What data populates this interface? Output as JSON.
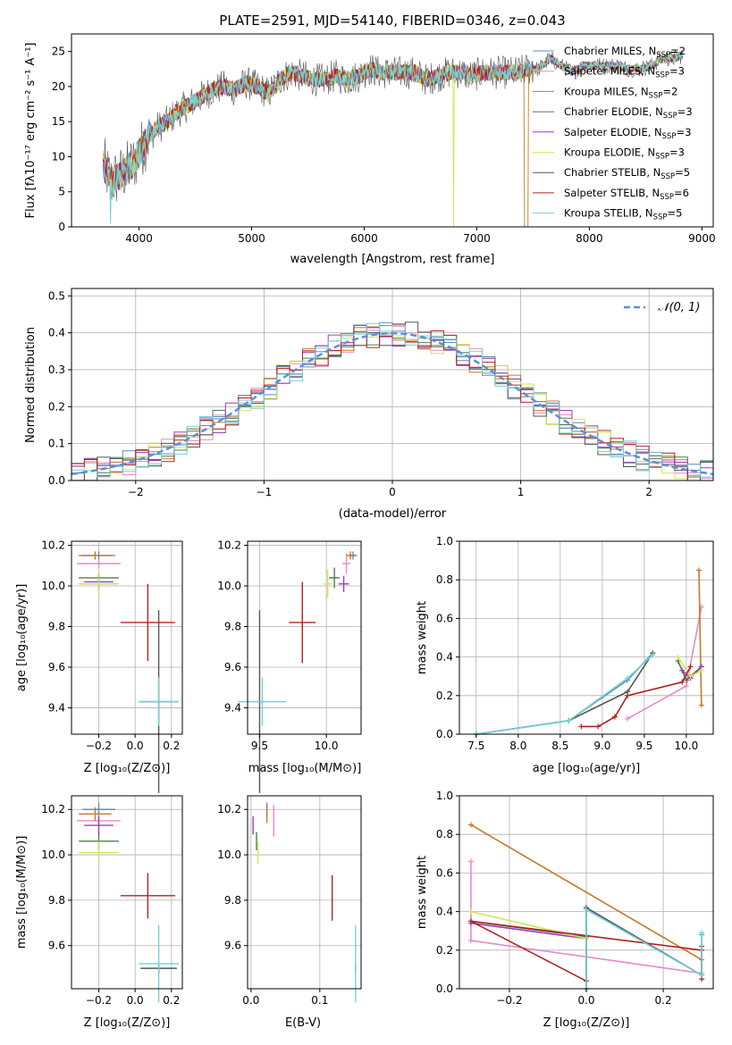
{
  "chart_data": [
    {
      "id": "spectrum",
      "type": "line",
      "title": "PLATE=2591, MJD=54140, FIBERID=0346, z=0.043",
      "xlabel": "wavelength [Angstrom, rest frame]",
      "ylabel": "Flux [fλ10⁻¹⁷ erg cm⁻² s⁻¹ A⁻¹]",
      "xlim": [
        3400,
        9100
      ],
      "ylim": [
        0,
        27.5
      ],
      "xticks": [
        4000,
        5000,
        6000,
        7000,
        8000,
        9000
      ],
      "yticks": [
        0,
        5,
        10,
        15,
        20,
        25
      ],
      "grid": false,
      "legend_position": "right",
      "continuum_x": [
        3680,
        3750,
        3850,
        3950,
        4050,
        4150,
        4250,
        4350,
        4450,
        4550,
        4650,
        4750,
        4850,
        4950,
        5050,
        5150,
        5250,
        5350,
        5450,
        5550,
        5650,
        5750,
        5850,
        5950,
        6050,
        6150,
        6250,
        6350,
        6450,
        6550,
        6650,
        6750,
        6850,
        6950,
        7050,
        7150,
        7250,
        7350,
        7450,
        7550,
        7650,
        7750,
        7850,
        7950,
        8050,
        8150,
        8250,
        8350,
        8450,
        8550,
        8650,
        8750,
        8830
      ],
      "continuum_y": [
        9,
        6.5,
        7.5,
        9,
        12,
        14,
        15,
        16.5,
        17.5,
        18.5,
        19.5,
        20,
        19.5,
        20.5,
        20,
        19,
        21,
        22,
        21.5,
        21,
        21,
        21.5,
        21,
        21.5,
        22.5,
        22,
        22,
        22,
        22,
        21,
        21.5,
        22,
        22,
        21.5,
        22,
        22,
        22,
        22,
        22.5,
        22.5,
        24,
        23,
        22,
        23,
        23,
        23,
        23,
        22.5,
        22.5,
        23,
        24,
        24,
        24.5
      ],
      "series": [
        {
          "name": "Chabrier MILES, N_SSP=2",
          "color": "#5b8fbf"
        },
        {
          "name": "Salpeter MILES, N_SSP=3",
          "color": "#e58ac8"
        },
        {
          "name": "Kroupa MILES, N_SSP=2",
          "color": "#c77828"
        },
        {
          "name": "Chabrier ELODIE, N_SSP=3",
          "color": "#4a7f4a"
        },
        {
          "name": "Salpeter ELODIE, N_SSP=3",
          "color": "#9a3fbf"
        },
        {
          "name": "Kroupa ELODIE, N_SSP=3",
          "color": "#d4e35a"
        },
        {
          "name": "Chabrier STELIB, N_SSP=5",
          "color": "#555555"
        },
        {
          "name": "Salpeter STELIB, N_SSP=6",
          "color": "#b22222"
        },
        {
          "name": "Kroupa STELIB, N_SSP=5",
          "color": "#6fd3d8"
        }
      ],
      "legend_labels": [
        {
          "text": "Chabrier MILES, N",
          "sub": "SSP",
          "tail": "=2"
        },
        {
          "text": "Salpeter MILES, N",
          "sub": "SSP",
          "tail": "=3"
        },
        {
          "text": "Kroupa MILES, N",
          "sub": "SSP",
          "tail": "=2"
        },
        {
          "text": "Chabrier ELODIE, N",
          "sub": "SSP",
          "tail": "=3"
        },
        {
          "text": "Salpeter ELODIE, N",
          "sub": "SSP",
          "tail": "=3"
        },
        {
          "text": "Kroupa ELODIE, N",
          "sub": "SSP",
          "tail": "=3"
        },
        {
          "text": "Chabrier STELIB, N",
          "sub": "SSP",
          "tail": "=5"
        },
        {
          "text": "Salpeter STELIB, N",
          "sub": "SSP",
          "tail": "=6"
        },
        {
          "text": "Kroupa STELIB, N",
          "sub": "SSP",
          "tail": "=5"
        }
      ]
    },
    {
      "id": "residuals",
      "type": "line",
      "xlabel": "(data-model)/error",
      "ylabel": "Normed distribution",
      "xlim": [
        -2.5,
        2.5
      ],
      "ylim": [
        0,
        0.52
      ],
      "xticks": [
        -2,
        -1,
        0,
        1,
        2
      ],
      "yticks": [
        0.0,
        0.1,
        0.2,
        0.3,
        0.4,
        0.5
      ],
      "grid": true,
      "legend_position": "top-right",
      "gaussian_label": "𝒩(0, 1)",
      "bin_width": 0.1,
      "gaussian": {
        "mean": 0,
        "sigma": 1,
        "color": "#5b8fd9"
      }
    },
    {
      "id": "age-vs-z",
      "type": "scatter",
      "xlabel": "Z [log₁₀(Z/Z⊙)]",
      "ylabel": "age  [log₁₀(age/yr)]",
      "xlim": [
        -0.35,
        0.26
      ],
      "ylim": [
        9.27,
        10.22
      ],
      "xticks": [
        -0.2,
        0.0,
        0.2
      ],
      "yticks": [
        9.4,
        9.6,
        9.8,
        10.0,
        10.2
      ],
      "grid": true,
      "points": [
        {
          "x": -0.2,
          "y": 10.15,
          "xerr": 0.09,
          "yerr": 0.02,
          "color": "#5b8fbf"
        },
        {
          "x": -0.2,
          "y": 10.11,
          "xerr": 0.12,
          "yerr": 0.02,
          "color": "#e58ac8"
        },
        {
          "x": -0.22,
          "y": 10.15,
          "xerr": 0.09,
          "yerr": 0.02,
          "color": "#c77828"
        },
        {
          "x": -0.2,
          "y": 10.04,
          "xerr": 0.11,
          "yerr": 0.02,
          "color": "#4a7f4a"
        },
        {
          "x": -0.2,
          "y": 10.02,
          "xerr": 0.08,
          "yerr": 0.04,
          "color": "#9a3fbf"
        },
        {
          "x": -0.2,
          "y": 10.01,
          "xerr": 0.11,
          "yerr": 0.07,
          "color": "#d4e35a"
        },
        {
          "x": 0.13,
          "y": 9.43,
          "xerr": 0.1,
          "yerr": 0.45,
          "color": "#555555"
        },
        {
          "x": 0.07,
          "y": 9.82,
          "xerr": 0.15,
          "yerr": 0.19,
          "color": "#b22222"
        },
        {
          "x": 0.13,
          "y": 9.43,
          "xerr": 0.11,
          "yerr": 0.12,
          "color": "#6fd3d8"
        }
      ]
    },
    {
      "id": "age-vs-mass",
      "type": "scatter",
      "xlabel": "mass [log₁₀(M/M⊙)]",
      "ylabel": "",
      "xlim": [
        9.41,
        10.26
      ],
      "ylim": [
        9.27,
        10.22
      ],
      "xticks": [
        9.5,
        10.0
      ],
      "yticks": [
        9.4,
        9.6,
        9.8,
        10.0,
        10.2
      ],
      "grid": true,
      "points": [
        {
          "x": 10.2,
          "y": 10.15,
          "xerr": 0.03,
          "yerr": 0.02,
          "color": "#5b8fbf"
        },
        {
          "x": 10.15,
          "y": 10.11,
          "xerr": 0.03,
          "yerr": 0.05,
          "color": "#e58ac8"
        },
        {
          "x": 10.18,
          "y": 10.15,
          "xerr": 0.03,
          "yerr": 0.02,
          "color": "#c77828"
        },
        {
          "x": 10.06,
          "y": 10.04,
          "xerr": 0.04,
          "yerr": 0.05,
          "color": "#4a7f4a"
        },
        {
          "x": 10.13,
          "y": 10.01,
          "xerr": 0.04,
          "yerr": 0.04,
          "color": "#9a3fbf"
        },
        {
          "x": 10.01,
          "y": 10.01,
          "xerr": 0.03,
          "yerr": 0.07,
          "color": "#d4e35a"
        },
        {
          "x": 9.5,
          "y": 9.43,
          "xerr": 0.02,
          "yerr": 0.45,
          "color": "#555555"
        },
        {
          "x": 9.82,
          "y": 9.82,
          "xerr": 0.1,
          "yerr": 0.2,
          "color": "#b22222"
        },
        {
          "x": 9.52,
          "y": 9.43,
          "xerr": 0.18,
          "yerr": 0.12,
          "color": "#6fd3d8"
        }
      ]
    },
    {
      "id": "weight-vs-age",
      "type": "line",
      "xlabel": "age  [log₁₀(age/yr)]",
      "ylabel": "mass weight",
      "xlim": [
        7.3,
        10.32
      ],
      "ylim": [
        0,
        1.0
      ],
      "xticks": [
        7.5,
        8.0,
        8.5,
        9.0,
        9.5,
        10.0
      ],
      "yticks": [
        0.0,
        0.2,
        0.4,
        0.6,
        0.8,
        1.0
      ],
      "grid": true,
      "series": [
        {
          "color": "#5b8fbf",
          "x": [
            7.5,
            8.6,
            9.3,
            9.6
          ],
          "y": [
            0.0,
            0.07,
            0.28,
            0.42
          ]
        },
        {
          "color": "#e58ac8",
          "x": [
            9.3,
            10.0,
            10.18
          ],
          "y": [
            0.08,
            0.25,
            0.66
          ]
        },
        {
          "color": "#c77828",
          "x": [
            10.15,
            10.18
          ],
          "y": [
            0.85,
            0.15
          ]
        },
        {
          "color": "#4a7f4a",
          "x": [
            9.9,
            10.0,
            10.18
          ],
          "y": [
            0.38,
            0.28,
            0.35
          ]
        },
        {
          "color": "#9a3fbf",
          "x": [
            9.95,
            10.05,
            10.18
          ],
          "y": [
            0.33,
            0.29,
            0.35
          ]
        },
        {
          "color": "#d4e35a",
          "x": [
            9.9,
            10.05,
            10.18
          ],
          "y": [
            0.4,
            0.3,
            0.33
          ]
        },
        {
          "color": "#555555",
          "x": [
            7.5,
            8.6,
            9.3,
            9.6
          ],
          "y": [
            0.0,
            0.07,
            0.22,
            0.42
          ]
        },
        {
          "color": "#b22222",
          "x": [
            8.75,
            8.95,
            9.15,
            9.3,
            9.95,
            10.05
          ],
          "y": [
            0.04,
            0.04,
            0.09,
            0.2,
            0.27,
            0.35
          ]
        },
        {
          "color": "#6fd3d8",
          "x": [
            7.5,
            8.6,
            9.3,
            9.6
          ],
          "y": [
            0.0,
            0.07,
            0.29,
            0.41
          ]
        }
      ]
    },
    {
      "id": "mass-vs-z",
      "type": "scatter",
      "xlabel": "Z [log₁₀(Z/Z⊙)]",
      "ylabel": "mass [log₁₀(M/M⊙)]",
      "xlim": [
        -0.35,
        0.26
      ],
      "ylim": [
        9.41,
        10.26
      ],
      "xticks": [
        -0.2,
        0.0,
        0.2
      ],
      "yticks": [
        9.6,
        9.8,
        10.0,
        10.2
      ],
      "grid": true,
      "points": [
        {
          "x": -0.2,
          "y": 10.2,
          "xerr": 0.09,
          "yerr": 0.03,
          "color": "#5b8fbf"
        },
        {
          "x": -0.2,
          "y": 10.15,
          "xerr": 0.12,
          "yerr": 0.03,
          "color": "#e58ac8"
        },
        {
          "x": -0.22,
          "y": 10.18,
          "xerr": 0.09,
          "yerr": 0.03,
          "color": "#c77828"
        },
        {
          "x": -0.2,
          "y": 10.06,
          "xerr": 0.11,
          "yerr": 0.04,
          "color": "#4a7f4a"
        },
        {
          "x": -0.2,
          "y": 10.13,
          "xerr": 0.08,
          "yerr": 0.04,
          "color": "#9a3fbf"
        },
        {
          "x": -0.2,
          "y": 10.01,
          "xerr": 0.11,
          "yerr": 0.05,
          "color": "#d4e35a"
        },
        {
          "x": 0.13,
          "y": 9.5,
          "xerr": 0.1,
          "yerr": 0.02,
          "color": "#555555"
        },
        {
          "x": 0.07,
          "y": 9.82,
          "xerr": 0.15,
          "yerr": 0.1,
          "color": "#b22222"
        },
        {
          "x": 0.13,
          "y": 9.52,
          "xerr": 0.11,
          "yerr": 0.17,
          "color": "#6fd3d8"
        }
      ]
    },
    {
      "id": "mass-vs-ebv",
      "type": "scatter",
      "xlabel": "E(B-V)",
      "ylabel": "",
      "xlim": [
        -0.005,
        0.16
      ],
      "ylim": [
        9.41,
        10.26
      ],
      "xticks": [
        0.0,
        0.1
      ],
      "yticks": [
        9.6,
        9.8,
        10.0,
        10.2
      ],
      "grid": true,
      "points": [
        {
          "x": 0.023,
          "y": 10.2,
          "yerr": 0.03,
          "color": "#5b8fbf"
        },
        {
          "x": 0.033,
          "y": 10.15,
          "yerr": 0.07,
          "color": "#e58ac8"
        },
        {
          "x": 0.023,
          "y": 10.18,
          "yerr": 0.04,
          "color": "#c77828"
        },
        {
          "x": 0.008,
          "y": 10.06,
          "yerr": 0.04,
          "color": "#4a7f4a"
        },
        {
          "x": 0.003,
          "y": 10.13,
          "yerr": 0.04,
          "color": "#9a3fbf"
        },
        {
          "x": 0.01,
          "y": 10.01,
          "yerr": 0.05,
          "color": "#d4e35a"
        },
        {
          "x": 0.152,
          "y": 9.5,
          "yerr": 0.02,
          "color": "#555555"
        },
        {
          "x": 0.118,
          "y": 9.81,
          "yerr": 0.1,
          "color": "#b22222"
        },
        {
          "x": 0.152,
          "y": 9.52,
          "yerr": 0.17,
          "color": "#6fd3d8"
        }
      ]
    },
    {
      "id": "weight-vs-z",
      "type": "line",
      "xlabel": "Z [log₁₀(Z/Z⊙)]",
      "ylabel": "mass weight",
      "xlim": [
        -0.33,
        0.33
      ],
      "ylim": [
        0,
        1.0
      ],
      "xticks": [
        -0.2,
        0.0,
        0.2
      ],
      "yticks": [
        0.0,
        0.2,
        0.4,
        0.6,
        0.8,
        1.0
      ],
      "grid": true,
      "series": [
        {
          "color": "#5b8fbf",
          "x": [
            0.0,
            0.0,
            0.3,
            0.3
          ],
          "y": [
            0.0,
            0.42,
            0.07,
            0.28
          ]
        },
        {
          "color": "#e58ac8",
          "x": [
            -0.3,
            -0.3,
            0.3
          ],
          "y": [
            0.66,
            0.25,
            0.08
          ]
        },
        {
          "color": "#c77828",
          "x": [
            -0.3,
            0.3
          ],
          "y": [
            0.85,
            0.15
          ]
        },
        {
          "color": "#4a7f4a",
          "x": [
            -0.3,
            0.0
          ],
          "y": [
            0.35,
            0.27
          ]
        },
        {
          "color": "#9a3fbf",
          "x": [
            -0.3,
            0.0
          ],
          "y": [
            0.34,
            0.26
          ]
        },
        {
          "color": "#d4e35a",
          "x": [
            -0.3,
            0.0
          ],
          "y": [
            0.4,
            0.26
          ]
        },
        {
          "color": "#555555",
          "x": [
            0.0,
            0.0,
            0.3,
            0.3
          ],
          "y": [
            0.0,
            0.42,
            0.07,
            0.22
          ]
        },
        {
          "color": "#b22222",
          "x": [
            0.0,
            -0.3,
            0.3,
            0.3
          ],
          "y": [
            0.04,
            0.35,
            0.2,
            0.05
          ]
        },
        {
          "color": "#6fd3d8",
          "x": [
            0.0,
            0.0,
            0.3,
            0.3
          ],
          "y": [
            0.0,
            0.41,
            0.07,
            0.29
          ]
        }
      ]
    }
  ]
}
